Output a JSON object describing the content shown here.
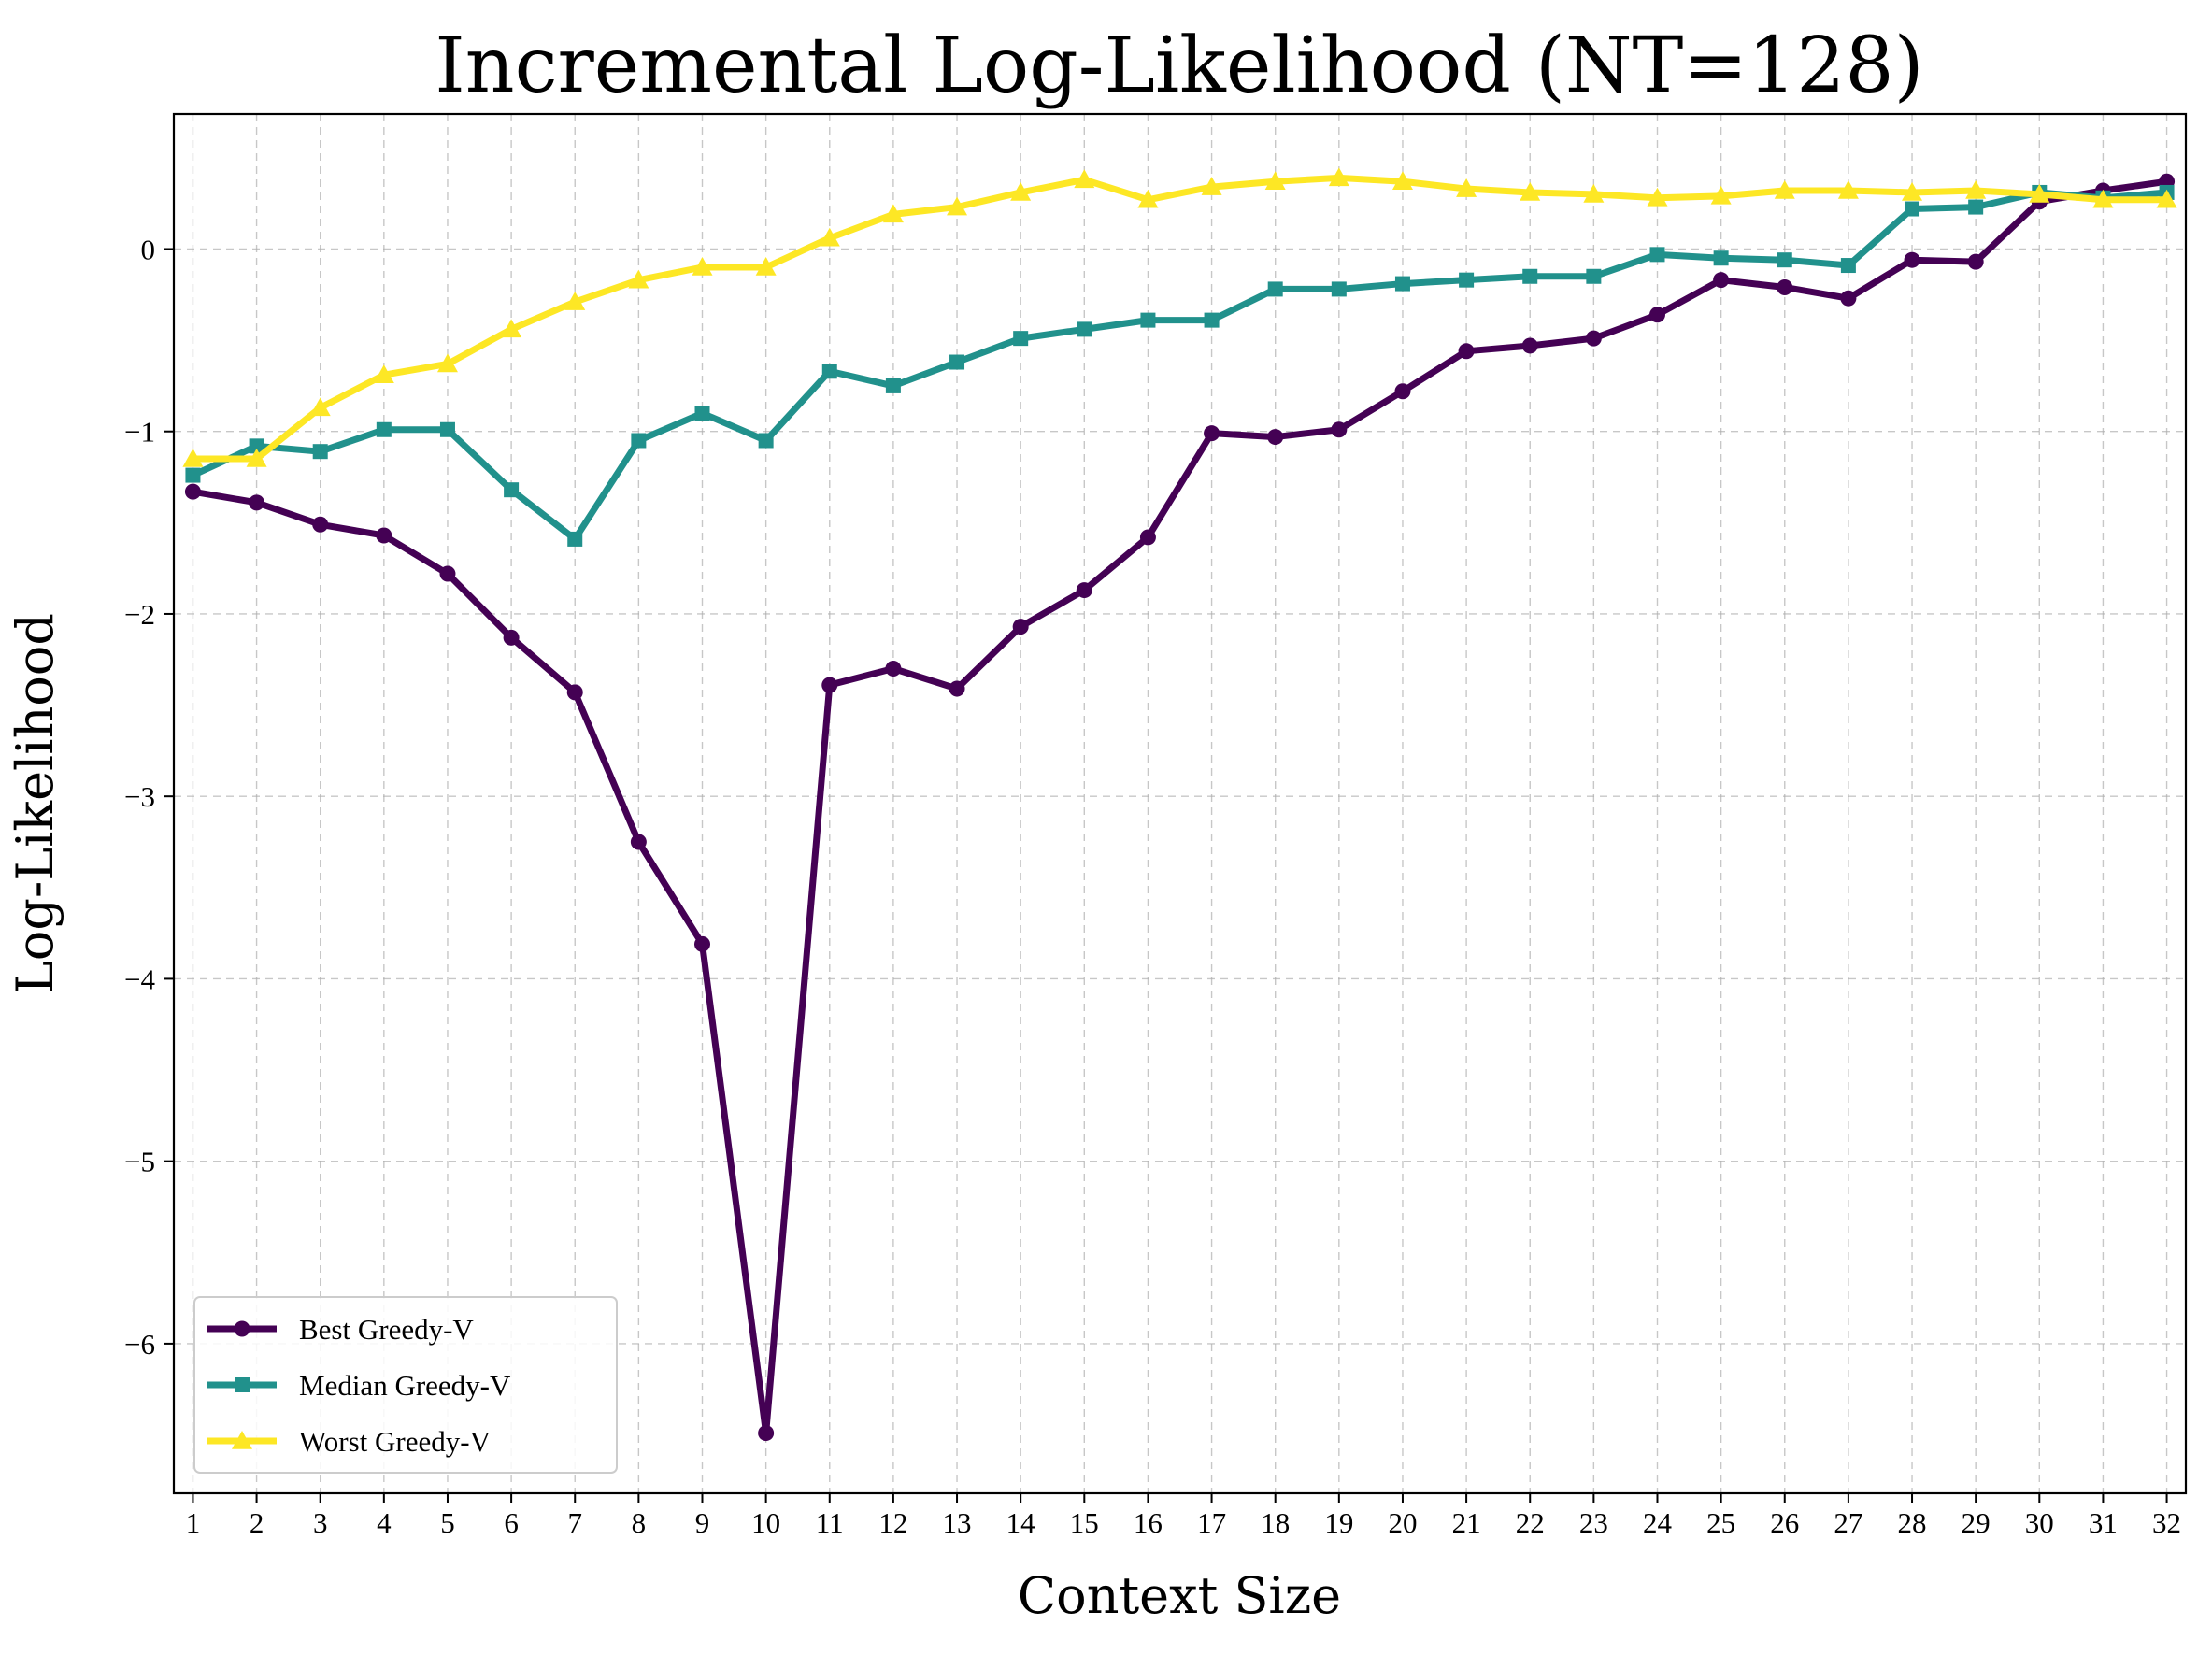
{
  "chart_data": {
    "type": "line",
    "title": "Incremental Log-Likelihood (NT=128)",
    "xlabel": "Context Size",
    "ylabel": "Log-Likelihood",
    "x": [
      1,
      2,
      3,
      4,
      5,
      6,
      7,
      8,
      9,
      10,
      11,
      12,
      13,
      14,
      15,
      16,
      17,
      18,
      19,
      20,
      21,
      22,
      23,
      24,
      25,
      26,
      27,
      28,
      29,
      30,
      31,
      32
    ],
    "xlim": [
      0.7,
      32.3
    ],
    "ylim": [
      -6.82,
      0.74
    ],
    "yticks": [
      0,
      -1,
      -2,
      -3,
      -4,
      -5,
      -6
    ],
    "ytick_labels": [
      "0",
      "−1",
      "−2",
      "−3",
      "−4",
      "−5",
      "−6"
    ],
    "grid": true,
    "legend_position": "lower-left",
    "series": [
      {
        "name": "Best Greedy-V",
        "color": "#440154",
        "marker": "circle",
        "values": [
          -1.33,
          -1.39,
          -1.51,
          -1.57,
          -1.78,
          -2.13,
          -2.43,
          -3.25,
          -3.81,
          -6.49,
          -2.39,
          -2.3,
          -2.41,
          -2.07,
          -1.87,
          -1.58,
          -1.01,
          -1.03,
          -0.99,
          -0.78,
          -0.56,
          -0.53,
          -0.49,
          -0.36,
          -0.17,
          -0.21,
          -0.27,
          -0.06,
          -0.07,
          0.26,
          0.32,
          0.37
        ]
      },
      {
        "name": "Median Greedy-V",
        "color": "#21918c",
        "marker": "square",
        "values": [
          -1.24,
          -1.08,
          -1.11,
          -0.99,
          -0.99,
          -1.32,
          -1.59,
          -1.05,
          -0.9,
          -1.05,
          -0.67,
          -0.75,
          -0.62,
          -0.49,
          -0.44,
          -0.39,
          -0.39,
          -0.22,
          -0.22,
          -0.19,
          -0.17,
          -0.15,
          -0.15,
          -0.03,
          -0.05,
          -0.06,
          -0.09,
          0.22,
          0.23,
          0.31,
          0.28,
          0.31
        ]
      },
      {
        "name": "Worst Greedy-V",
        "color": "#fde725",
        "marker": "triangle",
        "values": [
          -1.15,
          -1.15,
          -0.87,
          -0.69,
          -0.63,
          -0.44,
          -0.29,
          -0.17,
          -0.1,
          -0.1,
          0.06,
          0.19,
          0.23,
          0.31,
          0.38,
          0.27,
          0.34,
          0.37,
          0.39,
          0.37,
          0.33,
          0.31,
          0.3,
          0.28,
          0.29,
          0.32,
          0.32,
          0.31,
          0.32,
          0.3,
          0.27,
          0.27
        ]
      }
    ]
  }
}
